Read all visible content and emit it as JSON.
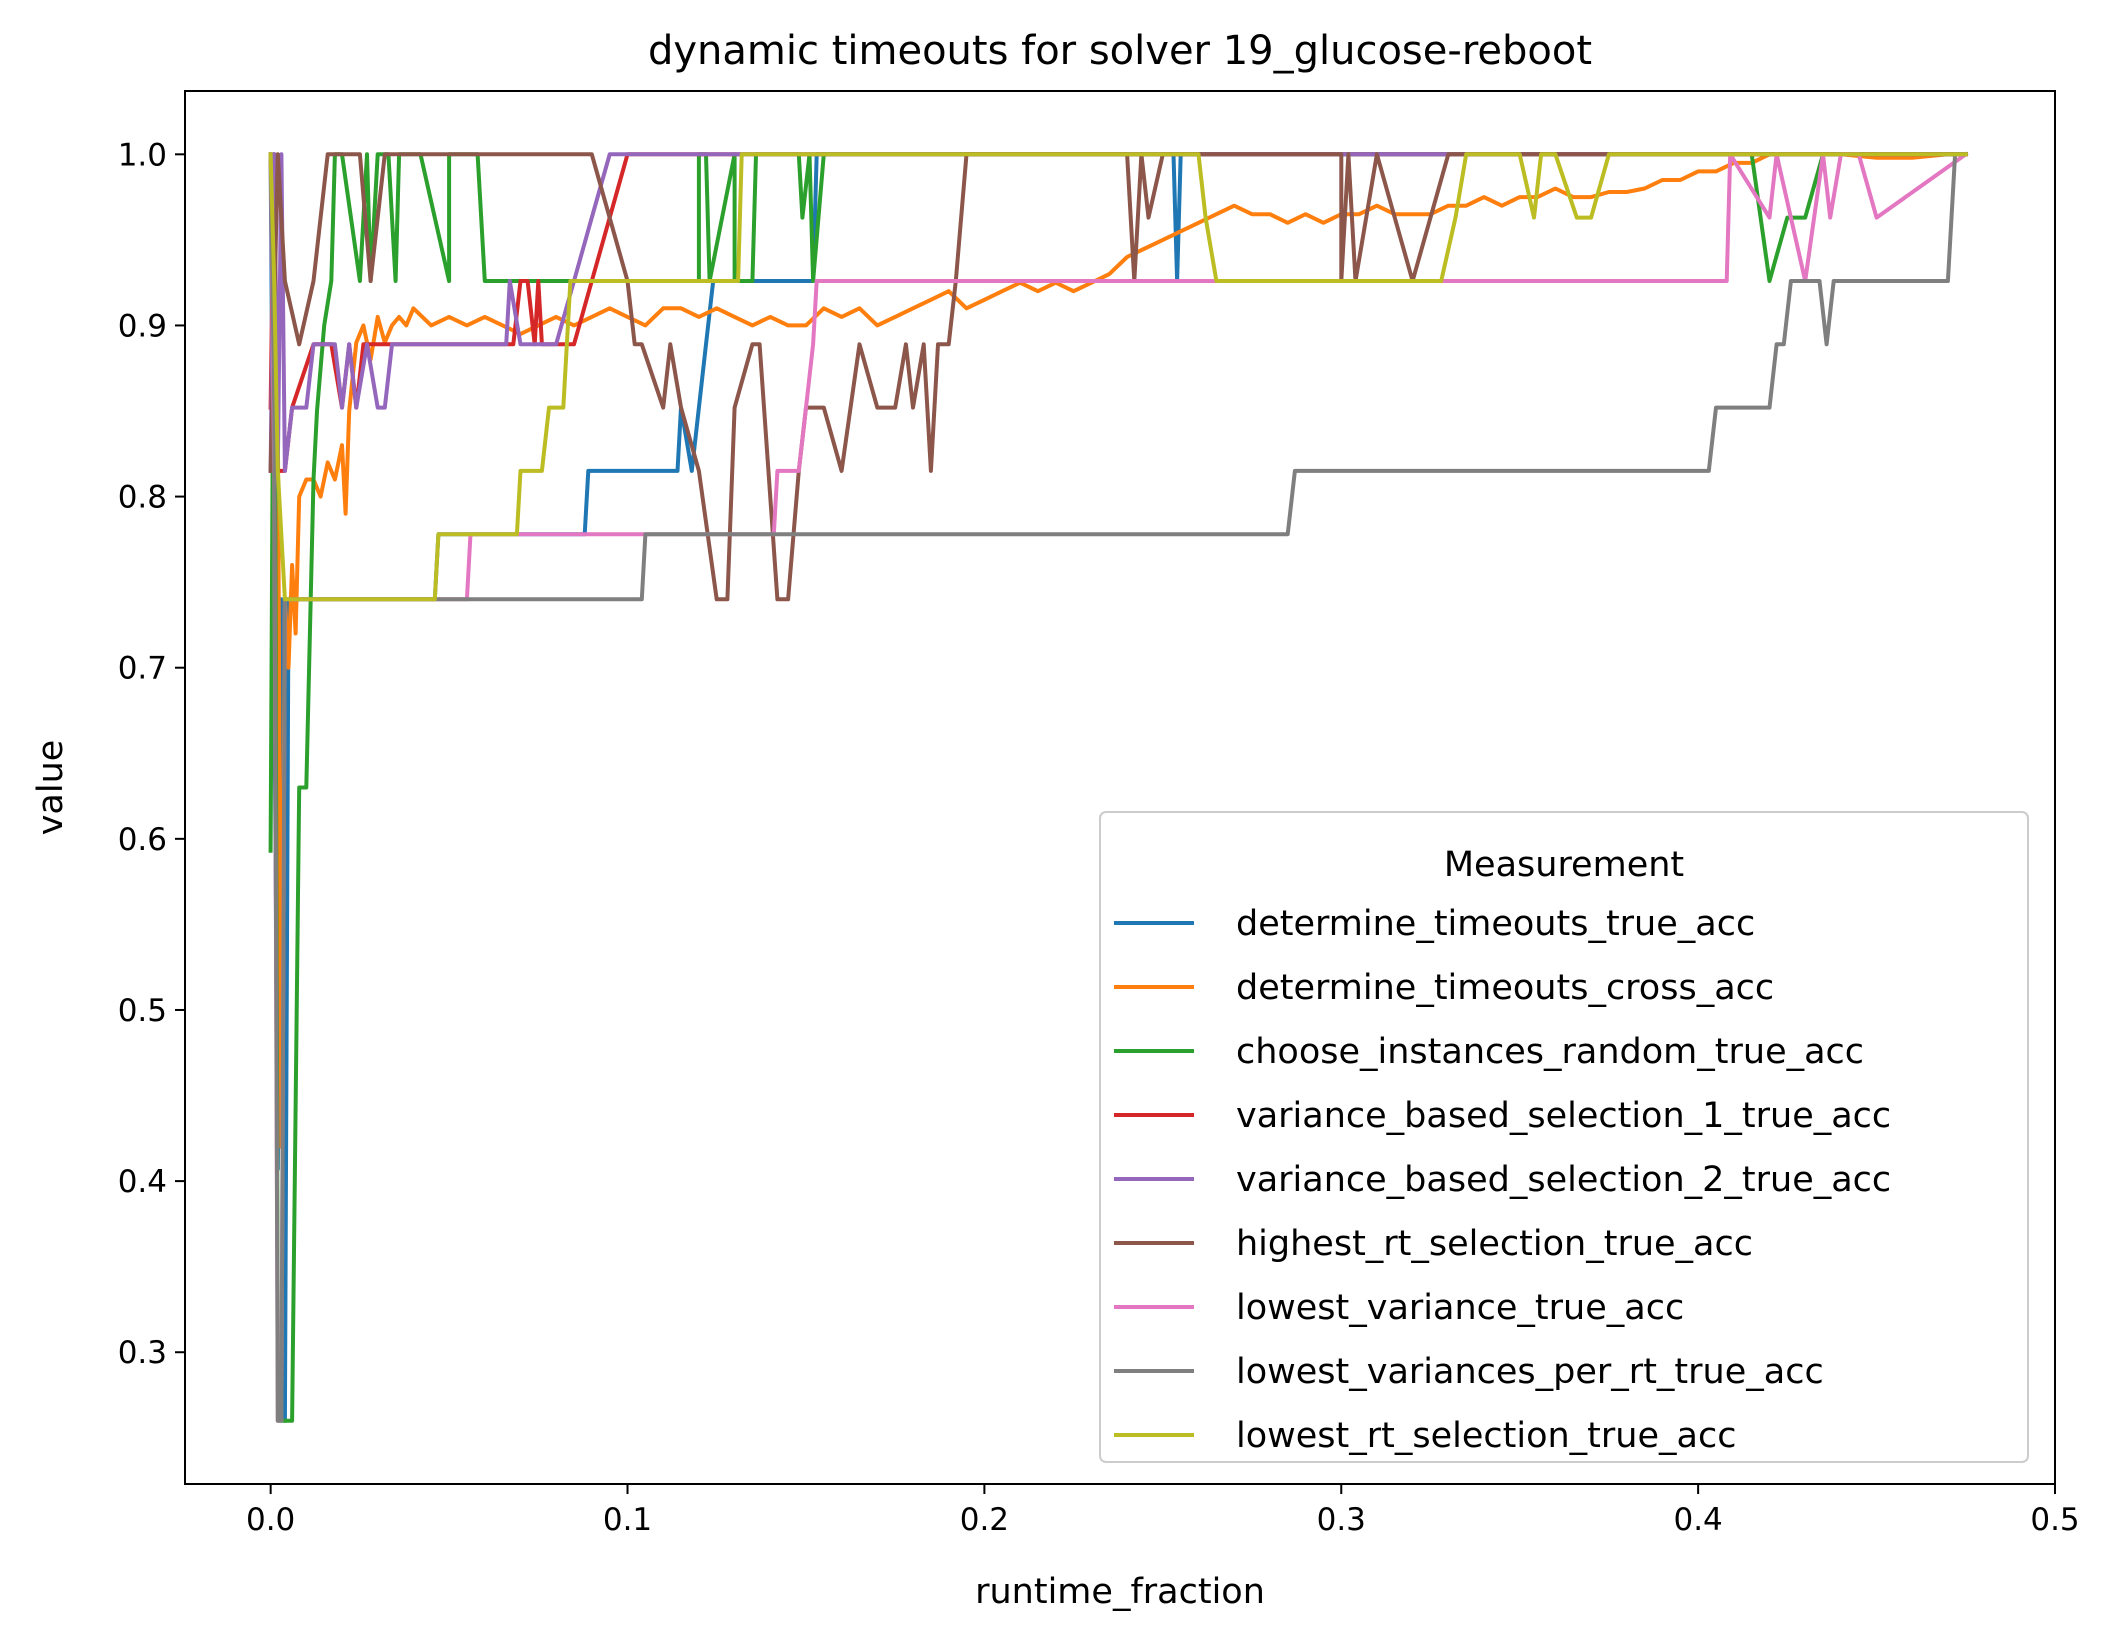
{
  "chart_data": {
    "type": "line",
    "title": "dynamic timeouts for solver 19_glucose-reboot",
    "xlabel": "runtime_fraction",
    "ylabel": "value",
    "xlim": [
      -0.024,
      0.5
    ],
    "ylim": [
      0.223,
      1.037
    ],
    "xticks": [
      0.0,
      0.1,
      0.2,
      0.3,
      0.4,
      0.5
    ],
    "xtick_labels": [
      "0.0",
      "0.1",
      "0.2",
      "0.3",
      "0.4",
      "0.5"
    ],
    "yticks": [
      0.3,
      0.4,
      0.5,
      0.6,
      0.7,
      0.8,
      0.9,
      1.0
    ],
    "ytick_labels": [
      "0.3",
      "0.4",
      "0.5",
      "0.6",
      "0.7",
      "0.8",
      "0.9",
      "1.0"
    ],
    "grid": false,
    "legend": {
      "title": "Measurement",
      "placement": "lower right"
    },
    "series": [
      {
        "name": "determine_timeouts_true_acc",
        "color": "#1f77b4",
        "x": [
          0.0,
          0.002,
          0.003,
          0.004,
          0.005,
          0.046,
          0.047,
          0.088,
          0.089,
          0.114,
          0.115,
          0.118,
          0.12,
          0.122,
          0.124,
          0.126,
          0.128,
          0.152,
          0.153,
          0.253,
          0.254,
          0.255,
          0.256,
          0.475
        ],
        "y": [
          1.0,
          0.407,
          0.74,
          0.26,
          0.74,
          0.74,
          0.778,
          0.778,
          0.815,
          0.815,
          0.852,
          0.815,
          0.852,
          0.889,
          0.926,
          0.926,
          0.926,
          0.926,
          1.0,
          1.0,
          0.926,
          1.0,
          1.0,
          1.0
        ]
      },
      {
        "name": "determine_timeouts_cross_acc",
        "color": "#ff7f0e",
        "x": [
          0.0,
          0.002,
          0.003,
          0.004,
          0.005,
          0.006,
          0.007,
          0.008,
          0.01,
          0.012,
          0.014,
          0.016,
          0.018,
          0.02,
          0.021,
          0.022,
          0.023,
          0.024,
          0.026,
          0.028,
          0.03,
          0.032,
          0.034,
          0.036,
          0.038,
          0.04,
          0.045,
          0.05,
          0.055,
          0.06,
          0.065,
          0.07,
          0.075,
          0.08,
          0.085,
          0.09,
          0.095,
          0.1,
          0.105,
          0.11,
          0.115,
          0.12,
          0.125,
          0.13,
          0.135,
          0.14,
          0.145,
          0.15,
          0.155,
          0.16,
          0.165,
          0.17,
          0.175,
          0.18,
          0.185,
          0.19,
          0.195,
          0.2,
          0.205,
          0.21,
          0.215,
          0.22,
          0.225,
          0.23,
          0.235,
          0.24,
          0.245,
          0.25,
          0.255,
          0.26,
          0.265,
          0.27,
          0.275,
          0.28,
          0.285,
          0.29,
          0.295,
          0.3,
          0.305,
          0.31,
          0.315,
          0.32,
          0.325,
          0.33,
          0.335,
          0.34,
          0.345,
          0.35,
          0.355,
          0.36,
          0.365,
          0.37,
          0.375,
          0.38,
          0.385,
          0.39,
          0.395,
          0.4,
          0.405,
          0.41,
          0.415,
          0.42,
          0.43,
          0.44,
          0.45,
          0.46,
          0.47,
          0.475
        ],
        "y": [
          1.0,
          0.85,
          0.42,
          0.74,
          0.7,
          0.76,
          0.72,
          0.8,
          0.81,
          0.81,
          0.8,
          0.82,
          0.81,
          0.83,
          0.79,
          0.85,
          0.87,
          0.89,
          0.9,
          0.88,
          0.905,
          0.89,
          0.9,
          0.905,
          0.9,
          0.91,
          0.9,
          0.905,
          0.9,
          0.905,
          0.9,
          0.895,
          0.9,
          0.905,
          0.9,
          0.905,
          0.91,
          0.905,
          0.9,
          0.91,
          0.91,
          0.905,
          0.91,
          0.905,
          0.9,
          0.905,
          0.9,
          0.9,
          0.91,
          0.905,
          0.91,
          0.9,
          0.905,
          0.91,
          0.915,
          0.92,
          0.91,
          0.915,
          0.92,
          0.925,
          0.92,
          0.925,
          0.92,
          0.925,
          0.93,
          0.94,
          0.945,
          0.95,
          0.955,
          0.96,
          0.965,
          0.97,
          0.965,
          0.965,
          0.96,
          0.965,
          0.96,
          0.965,
          0.965,
          0.97,
          0.965,
          0.965,
          0.965,
          0.97,
          0.97,
          0.975,
          0.97,
          0.975,
          0.975,
          0.98,
          0.975,
          0.975,
          0.978,
          0.978,
          0.98,
          0.985,
          0.985,
          0.99,
          0.99,
          0.995,
          0.995,
          1.0,
          1.0,
          1.0,
          0.998,
          0.998,
          1.0,
          1.0
        ]
      },
      {
        "name": "choose_instances_random_true_acc",
        "color": "#2ca02c",
        "x": [
          0.0,
          0.001,
          0.002,
          0.003,
          0.004,
          0.006,
          0.008,
          0.01,
          0.012,
          0.013,
          0.015,
          0.017,
          0.018,
          0.02,
          0.025,
          0.027,
          0.028,
          0.03,
          0.033,
          0.035,
          0.036,
          0.038,
          0.042,
          0.05,
          0.05,
          0.058,
          0.06,
          0.065,
          0.068,
          0.07,
          0.082,
          0.12,
          0.12,
          0.122,
          0.123,
          0.13,
          0.13,
          0.135,
          0.136,
          0.148,
          0.149,
          0.151,
          0.152,
          0.155,
          0.16,
          0.2,
          0.25,
          0.3,
          0.41,
          0.415,
          0.42,
          0.425,
          0.43,
          0.435,
          0.438,
          0.44,
          0.475
        ],
        "y": [
          0.593,
          1.0,
          0.3,
          0.26,
          0.26,
          0.26,
          0.63,
          0.63,
          0.81,
          0.85,
          0.9,
          0.926,
          1.0,
          1.0,
          0.926,
          1.0,
          0.926,
          1.0,
          1.0,
          0.926,
          1.0,
          1.0,
          1.0,
          0.926,
          1.0,
          1.0,
          0.926,
          0.926,
          0.926,
          0.926,
          0.926,
          0.926,
          1.0,
          1.0,
          0.926,
          1.0,
          0.926,
          0.926,
          1.0,
          1.0,
          0.963,
          1.0,
          0.926,
          1.0,
          1.0,
          1.0,
          1.0,
          1.0,
          1.0,
          1.0,
          0.926,
          0.963,
          0.963,
          1.0,
          1.0,
          1.0,
          1.0
        ]
      },
      {
        "name": "variance_based_selection_1_true_acc",
        "color": "#d62728",
        "x": [
          0.0,
          0.001,
          0.002,
          0.004,
          0.006,
          0.012,
          0.017,
          0.02,
          0.022,
          0.024,
          0.026,
          0.03,
          0.04,
          0.068,
          0.07,
          0.072,
          0.074,
          0.075,
          0.076,
          0.08,
          0.085,
          0.09,
          0.095,
          0.1,
          0.105,
          0.475
        ],
        "y": [
          0.852,
          1.0,
          0.815,
          0.815,
          0.852,
          0.889,
          0.889,
          0.852,
          0.889,
          0.852,
          0.889,
          0.889,
          0.889,
          0.889,
          0.926,
          0.926,
          0.889,
          0.926,
          0.889,
          0.889,
          0.889,
          0.926,
          0.963,
          1.0,
          1.0,
          1.0
        ]
      },
      {
        "name": "variance_based_selection_2_true_acc",
        "color": "#9467bd",
        "x": [
          0.0,
          0.001,
          0.002,
          0.003,
          0.004,
          0.006,
          0.01,
          0.012,
          0.018,
          0.02,
          0.022,
          0.024,
          0.027,
          0.03,
          0.032,
          0.034,
          0.036,
          0.04,
          0.066,
          0.067,
          0.07,
          0.08,
          0.085,
          0.09,
          0.095,
          0.475
        ],
        "y": [
          0.815,
          1.0,
          0.815,
          1.0,
          0.815,
          0.852,
          0.852,
          0.889,
          0.889,
          0.852,
          0.889,
          0.852,
          0.889,
          0.852,
          0.852,
          0.889,
          0.889,
          0.889,
          0.889,
          0.926,
          0.889,
          0.889,
          0.926,
          0.963,
          1.0,
          1.0
        ]
      },
      {
        "name": "highest_rt_selection_true_acc",
        "color": "#8c564b",
        "x": [
          0.0,
          0.002,
          0.004,
          0.008,
          0.012,
          0.016,
          0.025,
          0.028,
          0.032,
          0.05,
          0.07,
          0.09,
          0.1,
          0.102,
          0.104,
          0.11,
          0.112,
          0.115,
          0.12,
          0.125,
          0.128,
          0.13,
          0.135,
          0.137,
          0.142,
          0.145,
          0.148,
          0.15,
          0.155,
          0.16,
          0.165,
          0.17,
          0.175,
          0.178,
          0.18,
          0.183,
          0.185,
          0.187,
          0.19,
          0.192,
          0.195,
          0.2,
          0.21,
          0.22,
          0.24,
          0.242,
          0.244,
          0.246,
          0.25,
          0.3,
          0.3,
          0.302,
          0.304,
          0.31,
          0.32,
          0.33,
          0.34,
          0.475
        ],
        "y": [
          0.815,
          1.0,
          0.926,
          0.889,
          0.926,
          1.0,
          1.0,
          0.926,
          1.0,
          1.0,
          1.0,
          1.0,
          0.926,
          0.889,
          0.889,
          0.852,
          0.889,
          0.852,
          0.815,
          0.74,
          0.74,
          0.852,
          0.889,
          0.889,
          0.74,
          0.74,
          0.815,
          0.852,
          0.852,
          0.815,
          0.889,
          0.852,
          0.852,
          0.889,
          0.852,
          0.889,
          0.815,
          0.889,
          0.889,
          0.926,
          1.0,
          1.0,
          1.0,
          1.0,
          1.0,
          0.926,
          1.0,
          0.963,
          1.0,
          1.0,
          0.926,
          1.0,
          0.926,
          1.0,
          0.926,
          1.0,
          1.0,
          1.0
        ]
      },
      {
        "name": "lowest_variance_true_acc",
        "color": "#e377c2",
        "x": [
          0.0,
          0.001,
          0.002,
          0.003,
          0.004,
          0.046,
          0.055,
          0.056,
          0.07,
          0.08,
          0.141,
          0.142,
          0.148,
          0.15,
          0.152,
          0.153,
          0.155,
          0.2,
          0.3,
          0.408,
          0.409,
          0.42,
          0.422,
          0.43,
          0.435,
          0.437,
          0.44,
          0.445,
          0.45,
          0.475
        ],
        "y": [
          1.0,
          0.815,
          0.26,
          0.26,
          0.74,
          0.74,
          0.74,
          0.778,
          0.778,
          0.778,
          0.778,
          0.815,
          0.815,
          0.852,
          0.889,
          0.926,
          0.926,
          0.926,
          0.926,
          0.926,
          1.0,
          0.963,
          1.0,
          0.926,
          1.0,
          0.963,
          1.0,
          1.0,
          0.963,
          1.0
        ]
      },
      {
        "name": "lowest_variances_per_rt_true_acc",
        "color": "#7f7f7f",
        "x": [
          0.0,
          0.001,
          0.002,
          0.003,
          0.004,
          0.046,
          0.1,
          0.104,
          0.105,
          0.2,
          0.285,
          0.287,
          0.29,
          0.4,
          0.403,
          0.405,
          0.42,
          0.422,
          0.424,
          0.426,
          0.43,
          0.434,
          0.436,
          0.438,
          0.47,
          0.472,
          0.475
        ],
        "y": [
          1.0,
          0.852,
          0.26,
          0.26,
          0.74,
          0.74,
          0.74,
          0.74,
          0.778,
          0.778,
          0.778,
          0.815,
          0.815,
          0.815,
          0.815,
          0.852,
          0.852,
          0.889,
          0.889,
          0.926,
          0.926,
          0.926,
          0.889,
          0.926,
          0.926,
          1.0,
          1.0
        ]
      },
      {
        "name": "lowest_rt_selection_true_acc",
        "color": "#bcbd22",
        "x": [
          0.0,
          0.001,
          0.002,
          0.004,
          0.006,
          0.046,
          0.047,
          0.069,
          0.07,
          0.076,
          0.078,
          0.082,
          0.084,
          0.1,
          0.131,
          0.132,
          0.2,
          0.25,
          0.26,
          0.262,
          0.265,
          0.3,
          0.328,
          0.332,
          0.335,
          0.35,
          0.354,
          0.356,
          0.36,
          0.366,
          0.37,
          0.375,
          0.378,
          0.4,
          0.475
        ],
        "y": [
          1.0,
          0.926,
          0.815,
          0.74,
          0.74,
          0.74,
          0.778,
          0.778,
          0.815,
          0.815,
          0.852,
          0.852,
          0.926,
          0.926,
          0.926,
          1.0,
          1.0,
          1.0,
          1.0,
          0.963,
          0.926,
          0.926,
          0.926,
          0.963,
          1.0,
          1.0,
          0.963,
          1.0,
          1.0,
          0.963,
          0.963,
          1.0,
          1.0,
          1.0,
          1.0
        ]
      }
    ]
  }
}
